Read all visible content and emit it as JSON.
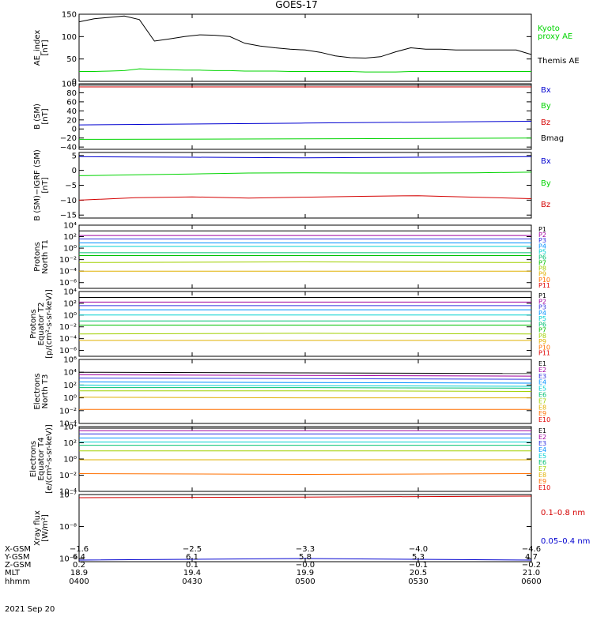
{
  "title": "GOES-17",
  "date_label": "2021 Sep 20",
  "colors": {
    "black": "#000000",
    "red": "#d40000",
    "green": "#00d400",
    "blue": "#0000d0",
    "p_channels": [
      "#000000",
      "#a000a0",
      "#3030e0",
      "#0090ff",
      "#00d0d0",
      "#00c070",
      "#00c000",
      "#a0d000",
      "#e0b000",
      "#ff7000",
      "#e00000"
    ],
    "e_channels": [
      "#000000",
      "#a000a0",
      "#3030e0",
      "#0090ff",
      "#00d0d0",
      "#00c070",
      "#a0d000",
      "#e0b000",
      "#ff7000",
      "#e00000"
    ]
  },
  "chart_data": [
    {
      "id": "ae",
      "type": "line",
      "ylabel": [
        "AE_index",
        "[nT]"
      ],
      "ylim": [
        0,
        150
      ],
      "yscale": "linear",
      "yticks": [
        0,
        50,
        100,
        150
      ],
      "yticklabels": [
        "0",
        "50",
        "100",
        "150"
      ],
      "x": [
        "04:00",
        "04:04",
        "04:08",
        "04:12",
        "04:16",
        "04:20",
        "04:24",
        "04:28",
        "04:32",
        "04:36",
        "04:40",
        "04:44",
        "04:48",
        "04:52",
        "04:56",
        "05:00",
        "05:04",
        "05:08",
        "05:12",
        "05:16",
        "05:20",
        "05:24",
        "05:28",
        "05:32",
        "05:36",
        "05:40",
        "05:44",
        "05:48",
        "05:52",
        "05:56",
        "06:00"
      ],
      "series": [
        {
          "name": "Kyoto proxy AE",
          "color": "#00d400",
          "values": [
            22,
            22,
            23,
            24,
            28,
            27,
            26,
            25,
            25,
            24,
            24,
            23,
            23,
            23,
            22,
            22,
            22,
            22,
            22,
            21,
            21,
            21,
            22,
            22,
            22,
            22,
            22,
            22,
            22,
            22,
            22
          ]
        },
        {
          "name": "Themis AE",
          "color": "#000000",
          "values": [
            133,
            140,
            143,
            146,
            138,
            90,
            95,
            100,
            104,
            103,
            100,
            85,
            79,
            75,
            72,
            70,
            65,
            57,
            53,
            52,
            55,
            66,
            75,
            72,
            72,
            70,
            70,
            70,
            70,
            70,
            60
          ]
        }
      ],
      "legend": [
        {
          "text": "Kyoto",
          "color": "#00d400"
        },
        {
          "text": "proxy AE",
          "color": "#00d400"
        },
        {
          "text": "Themis AE",
          "color": "#000000"
        }
      ]
    },
    {
      "id": "bsm",
      "type": "line",
      "ylabel": [
        "B (SM)",
        "[nT]"
      ],
      "ylim": [
        -45,
        100
      ],
      "yscale": "linear",
      "yticks": [
        -40,
        -20,
        0,
        20,
        40,
        60,
        80,
        100
      ],
      "yticklabels": [
        "−40",
        "−20",
        "0",
        "20",
        "40",
        "60",
        "80",
        "100"
      ],
      "x": [
        "04:00",
        "05:00",
        "06:00"
      ],
      "series": [
        {
          "name": "Bx",
          "color": "#0000d0",
          "values": [
            9,
            13,
            17
          ]
        },
        {
          "name": "By",
          "color": "#00d400",
          "values": [
            -23,
            -22,
            -20
          ]
        },
        {
          "name": "Bz",
          "color": "#d40000",
          "values": [
            93,
            93,
            93
          ]
        },
        {
          "name": "Bmag",
          "color": "#000000",
          "values": [
            97,
            97,
            97
          ]
        }
      ],
      "legend": [
        {
          "text": "Bx",
          "color": "#0000d0"
        },
        {
          "text": "By",
          "color": "#00d400"
        },
        {
          "text": "Bz",
          "color": "#d40000"
        },
        {
          "text": "Bmag",
          "color": "#000000"
        }
      ]
    },
    {
      "id": "bigrf",
      "type": "line",
      "ylabel": [
        "B (SM)−IGRF (SM)",
        "[nT]"
      ],
      "ylim": [
        -16,
        6
      ],
      "yscale": "linear",
      "yticks": [
        -15,
        -10,
        -5,
        0,
        5
      ],
      "yticklabels": [
        "−15",
        "−10",
        "−5",
        "0",
        "5"
      ],
      "x": [
        "04:00",
        "04:15",
        "04:30",
        "04:45",
        "05:00",
        "05:15",
        "05:30",
        "05:45",
        "06:00"
      ],
      "series": [
        {
          "name": "Bx",
          "color": "#0000d0",
          "values": [
            4.6,
            4.5,
            4.4,
            4.3,
            4.2,
            4.3,
            4.4,
            4.5,
            4.6
          ]
        },
        {
          "name": "By",
          "color": "#00d400",
          "values": [
            -1.8,
            -1.5,
            -1.2,
            -0.9,
            -0.8,
            -0.9,
            -0.9,
            -0.8,
            -0.6
          ]
        },
        {
          "name": "Bz",
          "color": "#d40000",
          "values": [
            -10.0,
            -9.2,
            -8.9,
            -9.3,
            -9.0,
            -8.7,
            -8.5,
            -9.0,
            -9.5
          ]
        }
      ],
      "legend": [
        {
          "text": "Bx",
          "color": "#0000d0"
        },
        {
          "text": "By",
          "color": "#00d400"
        },
        {
          "text": "Bz",
          "color": "#d40000"
        }
      ]
    },
    {
      "id": "pnorth",
      "type": "line",
      "ylabel": [
        "Protons",
        "North T1"
      ],
      "ylim": [
        -7,
        4
      ],
      "yscale": "log",
      "yticks": [
        -6,
        -4,
        -2,
        0,
        2,
        4
      ],
      "yticklabels": [
        "10⁻⁶",
        "10⁻⁴",
        "10⁻²",
        "10⁰",
        "10²",
        "10⁴"
      ],
      "x": [
        "04:00",
        "05:00",
        "06:00"
      ],
      "series": [
        {
          "name": "P1",
          "values": [
            3.0,
            3.0,
            3.0
          ]
        },
        {
          "name": "P2",
          "values": [
            2.2,
            2.2,
            2.2
          ]
        },
        {
          "name": "P3",
          "values": [
            1.6,
            1.6,
            1.6
          ]
        },
        {
          "name": "P4",
          "values": [
            0.9,
            0.9,
            0.9
          ]
        },
        {
          "name": "P5",
          "values": [
            0.3,
            0.3,
            0.3
          ]
        },
        {
          "name": "P6",
          "values": [
            -0.8,
            -0.8,
            -0.8
          ]
        },
        {
          "name": "P7",
          "values": [
            -1.3,
            -1.3,
            -1.3
          ]
        },
        {
          "name": "P8",
          "values": [
            -2.5,
            -2.4,
            -2.5
          ]
        },
        {
          "name": "P9",
          "values": [
            -4.0,
            -4.0,
            -4.0
          ]
        }
      ],
      "legend": [
        {
          "text": "P1",
          "color": "#000000"
        },
        {
          "text": "P2",
          "color": "#a000a0"
        },
        {
          "text": "P3",
          "color": "#3030e0"
        },
        {
          "text": "P4",
          "color": "#0090ff"
        },
        {
          "text": "P5",
          "color": "#00d0d0"
        },
        {
          "text": "P6",
          "color": "#00c070"
        },
        {
          "text": "P7",
          "color": "#00c000"
        },
        {
          "text": "P8",
          "color": "#a0d000"
        },
        {
          "text": "P9",
          "color": "#e0b000"
        },
        {
          "text": "P10",
          "color": "#ff7000"
        },
        {
          "text": "P11",
          "color": "#e00000"
        }
      ]
    },
    {
      "id": "pequator",
      "type": "line",
      "ylabel": [
        "Protons",
        "Equator T2",
        "[p/(cm²-s-sr-keV)]"
      ],
      "ylim": [
        -7,
        4
      ],
      "yscale": "log",
      "yticks": [
        -6,
        -4,
        -2,
        0,
        2,
        4
      ],
      "yticklabels": [
        "10⁻⁶",
        "10⁻⁴",
        "10⁻²",
        "10⁰",
        "10²",
        "10⁴"
      ],
      "x": [
        "04:00",
        "05:00",
        "06:00"
      ],
      "series": [
        {
          "name": "P1",
          "values": [
            3.0,
            3.0,
            3.0
          ]
        },
        {
          "name": "P2",
          "values": [
            2.2,
            2.2,
            2.2
          ]
        },
        {
          "name": "P3",
          "values": [
            1.6,
            1.6,
            1.6
          ]
        },
        {
          "name": "P4",
          "values": [
            0.9,
            0.9,
            0.9
          ]
        },
        {
          "name": "P5",
          "values": [
            0.0,
            0.0,
            0.0
          ]
        },
        {
          "name": "P6",
          "values": [
            -1.0,
            -1.0,
            -1.0
          ]
        },
        {
          "name": "P7",
          "values": [
            -1.7,
            -1.7,
            -1.7
          ]
        },
        {
          "name": "P8",
          "values": [
            -3.2,
            -3.1,
            -3.2
          ]
        },
        {
          "name": "P9",
          "values": [
            -4.3,
            -4.3,
            -4.3
          ]
        }
      ],
      "legend": [
        {
          "text": "P1",
          "color": "#000000"
        },
        {
          "text": "P2",
          "color": "#a000a0"
        },
        {
          "text": "P3",
          "color": "#3030e0"
        },
        {
          "text": "P4",
          "color": "#0090ff"
        },
        {
          "text": "P5",
          "color": "#00d0d0"
        },
        {
          "text": "P6",
          "color": "#00c070"
        },
        {
          "text": "P7",
          "color": "#00c000"
        },
        {
          "text": "P8",
          "color": "#a0d000"
        },
        {
          "text": "P9",
          "color": "#e0b000"
        },
        {
          "text": "P10",
          "color": "#ff7000"
        },
        {
          "text": "P11",
          "color": "#e00000"
        }
      ]
    },
    {
      "id": "enorth",
      "type": "line",
      "ylabel": [
        "Electrons",
        "North T3"
      ],
      "ylim": [
        -4,
        6
      ],
      "yscale": "log",
      "yticks": [
        -4,
        -2,
        0,
        2,
        4,
        6
      ],
      "yticklabels": [
        "10⁻⁴",
        "10⁻²",
        "10⁰",
        "10²",
        "10⁴",
        "10⁶"
      ],
      "x": [
        "04:00",
        "05:00",
        "06:00"
      ],
      "series": [
        {
          "name": "E1",
          "values": [
            4.0,
            3.9,
            3.8
          ]
        },
        {
          "name": "E2",
          "values": [
            3.6,
            3.5,
            3.4
          ]
        },
        {
          "name": "E3",
          "values": [
            3.1,
            3.0,
            2.9
          ]
        },
        {
          "name": "E4",
          "values": [
            2.5,
            2.4,
            2.3
          ]
        },
        {
          "name": "E5",
          "values": [
            2.0,
            1.9,
            1.8
          ]
        },
        {
          "name": "E6",
          "values": [
            1.6,
            1.6,
            1.5
          ]
        },
        {
          "name": "E7",
          "values": [
            1.1,
            1.1,
            1.0
          ]
        },
        {
          "name": "E8",
          "values": [
            0.1,
            0.0,
            0.0
          ]
        },
        {
          "name": "E9",
          "values": [
            -1.8,
            -1.8,
            -1.8
          ]
        }
      ],
      "legend": [
        {
          "text": "E1",
          "color": "#000000"
        },
        {
          "text": "E2",
          "color": "#a000a0"
        },
        {
          "text": "E3",
          "color": "#3030e0"
        },
        {
          "text": "E4",
          "color": "#0090ff"
        },
        {
          "text": "E5",
          "color": "#00d0d0"
        },
        {
          "text": "E6",
          "color": "#00c070"
        },
        {
          "text": "E7",
          "color": "#a0d000"
        },
        {
          "text": "E8",
          "color": "#e0b000"
        },
        {
          "text": "E9",
          "color": "#ff7000"
        },
        {
          "text": "E10",
          "color": "#e00000"
        }
      ]
    },
    {
      "id": "eequator",
      "type": "line",
      "ylabel": [
        "Electrons",
        "Equator T4",
        "[e/(cm²-s-sr-keV)]"
      ],
      "ylim": [
        -4,
        4
      ],
      "yscale": "log",
      "yticks": [
        -4,
        -2,
        0,
        2,
        4
      ],
      "yticklabels": [
        "10⁻⁴",
        "10⁻²",
        "10⁰",
        "10²",
        "10⁴"
      ],
      "x": [
        "04:00",
        "05:00",
        "06:00"
      ],
      "series": [
        {
          "name": "E1",
          "values": [
            3.8,
            3.8,
            3.8
          ]
        },
        {
          "name": "E2",
          "values": [
            3.5,
            3.5,
            3.5
          ]
        },
        {
          "name": "E3",
          "values": [
            3.1,
            3.1,
            3.1
          ]
        },
        {
          "name": "E4",
          "values": [
            2.6,
            2.6,
            2.6
          ]
        },
        {
          "name": "E5",
          "values": [
            2.1,
            2.1,
            2.1
          ]
        },
        {
          "name": "E6",
          "values": [
            1.7,
            1.7,
            1.7
          ]
        },
        {
          "name": "E7",
          "values": [
            1.0,
            1.0,
            1.0
          ]
        },
        {
          "name": "E8",
          "values": [
            -0.1,
            -0.1,
            -0.1
          ]
        },
        {
          "name": "E9",
          "values": [
            -1.8,
            -1.9,
            -1.8
          ]
        }
      ],
      "legend": [
        {
          "text": "E1",
          "color": "#000000"
        },
        {
          "text": "E2",
          "color": "#a000a0"
        },
        {
          "text": "E3",
          "color": "#3030e0"
        },
        {
          "text": "E4",
          "color": "#0090ff"
        },
        {
          "text": "E5",
          "color": "#00d0d0"
        },
        {
          "text": "E6",
          "color": "#00c070"
        },
        {
          "text": "E7",
          "color": "#a0d000"
        },
        {
          "text": "E8",
          "color": "#e0b000"
        },
        {
          "text": "E9",
          "color": "#ff7000"
        },
        {
          "text": "E10",
          "color": "#e00000"
        }
      ]
    },
    {
      "id": "xray",
      "type": "line",
      "ylabel": [
        "Xray flux",
        "[W/m²]"
      ],
      "ylim": [
        -9.1,
        -7.0
      ],
      "yscale": "log",
      "yticks": [
        -9,
        -8,
        -7
      ],
      "yticklabels": [
        "10⁻⁹",
        "10⁻⁸",
        "10⁻⁷"
      ],
      "x": [
        "04:00",
        "05:00",
        "06:00"
      ],
      "series": [
        {
          "name": "0.1–0.8 nm",
          "color": "#d40000",
          "values": [
            -7.1,
            -7.08,
            -7.05
          ]
        },
        {
          "name": "0.05–0.4 nm",
          "color": "#0000d0",
          "values": [
            -9.05,
            -9.0,
            -9.05
          ]
        }
      ],
      "legend": [
        {
          "text": "0.1–0.8 nm",
          "color": "#d40000"
        },
        {
          "text": "0.05–0.4 nm",
          "color": "#0000d0"
        }
      ]
    }
  ],
  "ephemeris": {
    "row_labels": [
      "X-GSM",
      "Y-GSM",
      "Z-GSM",
      "MLT",
      "hhmm"
    ],
    "columns": [
      [
        "−1.6",
        "6.4",
        "0.2",
        "18.9",
        "0400"
      ],
      [
        "−2.5",
        "6.1",
        "0.1",
        "19.4",
        "0430"
      ],
      [
        "−3.3",
        "5.8",
        "−0.0",
        "19.9",
        "0500"
      ],
      [
        "−4.0",
        "5.3",
        "−0.1",
        "20.5",
        "0530"
      ],
      [
        "−4.6",
        "4.7",
        "−0.2",
        "21.0",
        "0600"
      ]
    ]
  }
}
